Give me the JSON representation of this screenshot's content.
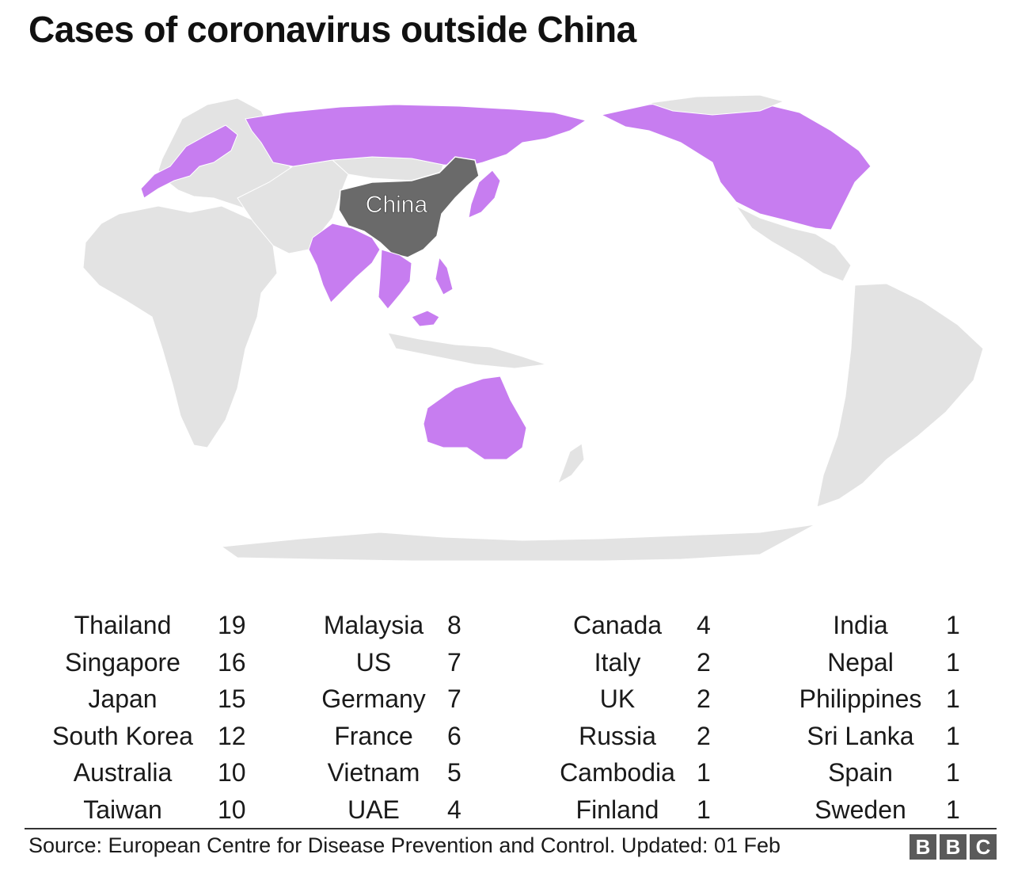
{
  "title": "Cases of coronavirus outside China",
  "map": {
    "highlighted_label": "China",
    "colors": {
      "affected": "#c77df0",
      "china": "#6a6a6a",
      "land": "#e3e3e3",
      "border": "#ffffff"
    },
    "affected_countries": [
      "Russia",
      "Canada",
      "US",
      "India",
      "Australia",
      "Thailand",
      "Vietnam",
      "Malaysia",
      "Singapore",
      "Philippines",
      "Japan",
      "South Korea",
      "Taiwan",
      "UAE",
      "Germany",
      "France",
      "Italy",
      "Spain",
      "UK",
      "Finland",
      "Sweden",
      "Nepal",
      "Sri Lanka",
      "Cambodia"
    ]
  },
  "table": {
    "columns": [
      [
        {
          "country": "Thailand",
          "count": "19"
        },
        {
          "country": "Singapore",
          "count": "16"
        },
        {
          "country": "Japan",
          "count": "15"
        },
        {
          "country": "South Korea",
          "count": "12"
        },
        {
          "country": "Australia",
          "count": "10"
        },
        {
          "country": "Taiwan",
          "count": "10"
        }
      ],
      [
        {
          "country": "Malaysia",
          "count": "8"
        },
        {
          "country": "US",
          "count": "7"
        },
        {
          "country": "Germany",
          "count": "7"
        },
        {
          "country": "France",
          "count": "6"
        },
        {
          "country": "Vietnam",
          "count": "5"
        },
        {
          "country": "UAE",
          "count": "4"
        }
      ],
      [
        {
          "country": "Canada",
          "count": "4"
        },
        {
          "country": "Italy",
          "count": "2"
        },
        {
          "country": "UK",
          "count": "2"
        },
        {
          "country": "Russia",
          "count": "2"
        },
        {
          "country": "Cambodia",
          "count": "1"
        },
        {
          "country": "Finland",
          "count": "1"
        }
      ],
      [
        {
          "country": "India",
          "count": "1"
        },
        {
          "country": "Nepal",
          "count": "1"
        },
        {
          "country": "Philippines",
          "count": "1"
        },
        {
          "country": "Sri Lanka",
          "count": "1"
        },
        {
          "country": "Spain",
          "count": "1"
        },
        {
          "country": "Sweden",
          "count": "1"
        }
      ]
    ]
  },
  "footer": {
    "source": "Source: European Centre for Disease Prevention and Control. Updated: 01 Feb",
    "logo_letters": [
      "B",
      "B",
      "C"
    ]
  }
}
